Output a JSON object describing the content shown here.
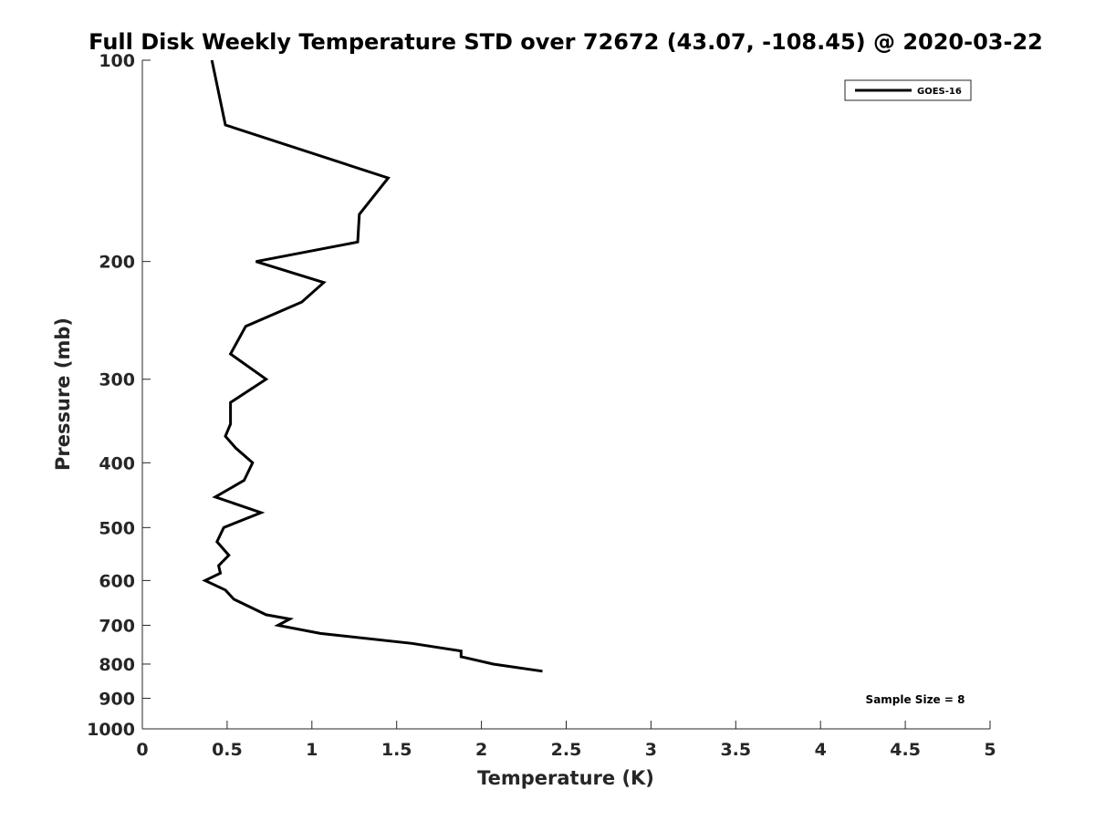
{
  "chart_data": {
    "type": "line",
    "title": "Full Disk Weekly Temperature STD over 72672 (43.07, -108.45) @ 2020-03-22",
    "xlabel": "Temperature (K)",
    "ylabel": "Pressure (mb)",
    "xlim": [
      0,
      5
    ],
    "ylim": [
      100,
      1000
    ],
    "yscale": "log",
    "y_reversed": true,
    "xticks": [
      0,
      0.5,
      1,
      1.5,
      2,
      2.5,
      3,
      3.5,
      4,
      4.5,
      5
    ],
    "xtick_labels": [
      "0",
      "0.5",
      "1",
      "1.5",
      "2",
      "2.5",
      "3",
      "3.5",
      "4",
      "4.5",
      "5"
    ],
    "yticks": [
      100,
      200,
      300,
      400,
      500,
      600,
      700,
      800,
      900,
      1000
    ],
    "ytick_labels": [
      "100",
      "200",
      "300",
      "400",
      "500",
      "600",
      "700",
      "800",
      "900",
      "1000"
    ],
    "grid": false,
    "legend": {
      "position": "top-right",
      "entries": [
        "GOES-16"
      ]
    },
    "annotation": "Sample Size = 8",
    "series": [
      {
        "name": "GOES-16",
        "color": "#000000",
        "points": [
          [
            0.41,
            100
          ],
          [
            0.49,
            125
          ],
          [
            1.45,
            150
          ],
          [
            1.28,
            170
          ],
          [
            1.27,
            187
          ],
          [
            0.67,
            200
          ],
          [
            1.07,
            215
          ],
          [
            0.94,
            230
          ],
          [
            0.61,
            250
          ],
          [
            0.52,
            275
          ],
          [
            0.73,
            300
          ],
          [
            0.52,
            325
          ],
          [
            0.52,
            350
          ],
          [
            0.49,
            365
          ],
          [
            0.55,
            380
          ],
          [
            0.65,
            400
          ],
          [
            0.6,
            425
          ],
          [
            0.43,
            450
          ],
          [
            0.7,
            475
          ],
          [
            0.48,
            500
          ],
          [
            0.44,
            525
          ],
          [
            0.51,
            550
          ],
          [
            0.45,
            570
          ],
          [
            0.46,
            585
          ],
          [
            0.37,
            600
          ],
          [
            0.49,
            620
          ],
          [
            0.54,
            640
          ],
          [
            0.73,
            675
          ],
          [
            0.87,
            685
          ],
          [
            0.8,
            700
          ],
          [
            1.05,
            720
          ],
          [
            1.59,
            745
          ],
          [
            1.88,
            765
          ],
          [
            1.88,
            780
          ],
          [
            2.07,
            800
          ],
          [
            2.36,
            820
          ]
        ]
      }
    ]
  }
}
